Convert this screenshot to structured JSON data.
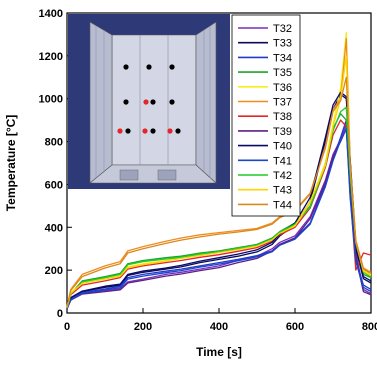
{
  "chart_data": {
    "type": "line",
    "title": "",
    "xlabel": "Time [s]",
    "ylabel": "Temperature [°C]",
    "xlim": [
      0,
      800
    ],
    "ylim": [
      0,
      1400
    ],
    "xticks": [
      0,
      200,
      400,
      600,
      800
    ],
    "yticks": [
      0,
      200,
      400,
      600,
      800,
      1000,
      1200,
      1400
    ],
    "grid": false,
    "legend_position": "top-right",
    "x": [
      0,
      10,
      40,
      100,
      140,
      160,
      200,
      260,
      300,
      350,
      400,
      450,
      500,
      540,
      560,
      600,
      640,
      680,
      700,
      720,
      735,
      745,
      760,
      780,
      800
    ],
    "series": [
      {
        "name": "T32",
        "color": "#7b2cbf",
        "values": [
          20,
          60,
          90,
          105,
          112,
          145,
          158,
          180,
          190,
          205,
          220,
          245,
          265,
          300,
          330,
          360,
          450,
          620,
          740,
          810,
          880,
          600,
          280,
          110,
          90
        ]
      },
      {
        "name": "T33",
        "color": "#0b0b5e",
        "values": [
          20,
          70,
          100,
          120,
          130,
          175,
          190,
          205,
          215,
          235,
          250,
          265,
          285,
          320,
          360,
          410,
          520,
          800,
          950,
          1020,
          1000,
          700,
          300,
          160,
          140
        ]
      },
      {
        "name": "T34",
        "color": "#2538c9",
        "values": [
          20,
          65,
          95,
          112,
          125,
          165,
          180,
          195,
          205,
          220,
          235,
          250,
          268,
          290,
          320,
          350,
          420,
          600,
          720,
          820,
          900,
          560,
          250,
          130,
          110
        ]
      },
      {
        "name": "T35",
        "color": "#21a32c",
        "values": [
          25,
          90,
          150,
          170,
          185,
          230,
          245,
          258,
          265,
          280,
          290,
          305,
          320,
          350,
          380,
          420,
          500,
          700,
          860,
          930,
          900,
          640,
          320,
          180,
          165
        ]
      },
      {
        "name": "T36",
        "color": "#f3ef1a",
        "values": [
          25,
          95,
          140,
          160,
          175,
          215,
          230,
          245,
          258,
          272,
          285,
          300,
          315,
          345,
          375,
          410,
          520,
          700,
          880,
          1050,
          1310,
          700,
          330,
          200,
          180
        ]
      },
      {
        "name": "T37",
        "color": "#f28a1e",
        "values": [
          30,
          110,
          180,
          220,
          240,
          290,
          310,
          335,
          350,
          365,
          375,
          385,
          395,
          420,
          450,
          480,
          560,
          780,
          950,
          1000,
          1280,
          720,
          340,
          210,
          190
        ]
      },
      {
        "name": "T38",
        "color": "#e3262b",
        "values": [
          25,
          85,
          130,
          150,
          165,
          205,
          220,
          235,
          245,
          260,
          272,
          288,
          305,
          335,
          365,
          400,
          490,
          680,
          830,
          900,
          870,
          560,
          200,
          280,
          270
        ]
      },
      {
        "name": "T39",
        "color": "#5a2088",
        "values": [
          20,
          60,
          88,
          100,
          108,
          140,
          152,
          172,
          182,
          198,
          212,
          235,
          255,
          290,
          320,
          350,
          440,
          610,
          730,
          800,
          860,
          580,
          260,
          100,
          85
        ]
      },
      {
        "name": "T40",
        "color": "#0a0a66",
        "values": [
          20,
          72,
          102,
          125,
          135,
          180,
          196,
          210,
          222,
          242,
          258,
          275,
          295,
          330,
          370,
          420,
          540,
          820,
          970,
          1030,
          1010,
          720,
          320,
          170,
          150
        ]
      },
      {
        "name": "T41",
        "color": "#1a46c9",
        "values": [
          20,
          62,
          92,
          108,
          118,
          158,
          172,
          188,
          198,
          214,
          228,
          244,
          262,
          286,
          316,
          345,
          415,
          590,
          710,
          805,
          860,
          540,
          240,
          120,
          100
        ]
      },
      {
        "name": "T42",
        "color": "#1fcc2a",
        "values": [
          25,
          88,
          145,
          165,
          180,
          225,
          240,
          252,
          260,
          275,
          285,
          300,
          316,
          346,
          376,
          415,
          495,
          690,
          850,
          940,
          960,
          650,
          330,
          190,
          170
        ]
      },
      {
        "name": "T43",
        "color": "#ffd400",
        "values": [
          25,
          92,
          138,
          158,
          172,
          212,
          226,
          242,
          255,
          268,
          282,
          296,
          312,
          342,
          372,
          406,
          515,
          690,
          870,
          1000,
          1200,
          690,
          330,
          195,
          175
        ]
      },
      {
        "name": "T44",
        "color": "#d88a1c",
        "values": [
          30,
          105,
          170,
          210,
          230,
          280,
          300,
          325,
          340,
          355,
          368,
          378,
          390,
          415,
          445,
          475,
          555,
          770,
          940,
          990,
          1100,
          700,
          335,
          205,
          185
        ]
      }
    ]
  }
}
